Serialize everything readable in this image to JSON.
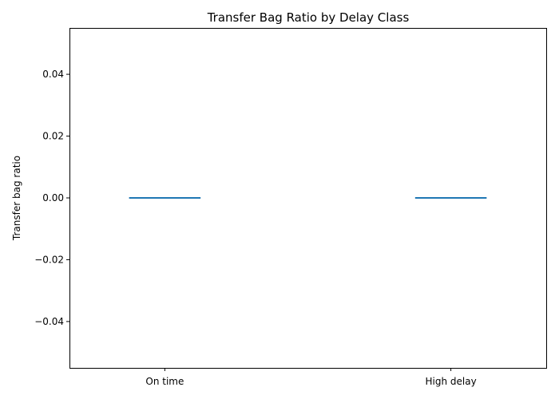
{
  "chart_data": {
    "type": "box",
    "title": "Transfer Bag Ratio by Delay Class",
    "xlabel": "",
    "ylabel": "Transfer bag ratio",
    "categories": [
      "On time",
      "High delay"
    ],
    "series": [
      {
        "values": [
          0.0,
          0.0
        ]
      }
    ],
    "ylim": [
      -0.055,
      0.055
    ],
    "yticks": [
      -0.04,
      -0.02,
      0.0,
      0.02,
      0.04
    ],
    "ytick_labels": [
      "−0.04",
      "−0.02",
      "0.00",
      "0.02",
      "0.04"
    ],
    "grid": false,
    "legend": "none",
    "colors": {
      "series": "#1f77b4",
      "axis": "#000000",
      "background": "#ffffff"
    }
  }
}
